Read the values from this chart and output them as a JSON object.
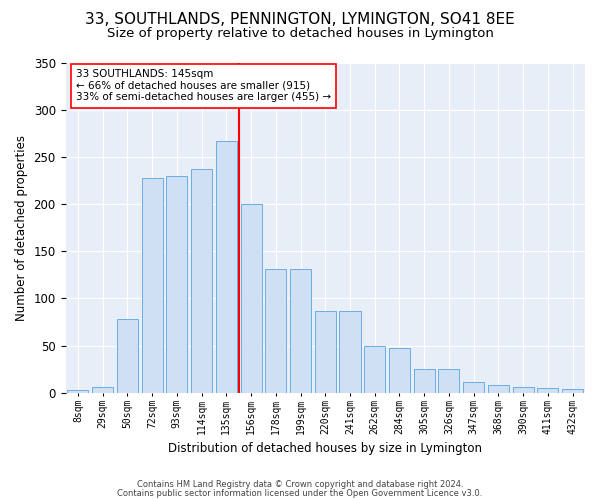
{
  "title1": "33, SOUTHLANDS, PENNINGTON, LYMINGTON, SO41 8EE",
  "title2": "Size of property relative to detached houses in Lymington",
  "xlabel": "Distribution of detached houses by size in Lymington",
  "ylabel": "Number of detached properties",
  "bar_labels": [
    "8sqm",
    "29sqm",
    "50sqm",
    "72sqm",
    "93sqm",
    "114sqm",
    "135sqm",
    "156sqm",
    "178sqm",
    "199sqm",
    "220sqm",
    "241sqm",
    "262sqm",
    "284sqm",
    "305sqm",
    "326sqm",
    "347sqm",
    "368sqm",
    "390sqm",
    "411sqm",
    "432sqm"
  ],
  "bar_values": [
    3,
    6,
    78,
    228,
    230,
    237,
    267,
    200,
    131,
    131,
    87,
    87,
    50,
    47,
    25,
    25,
    11,
    8,
    6,
    5,
    4
  ],
  "bar_color": "#cfe0f5",
  "bar_edge_color": "#6aaee0",
  "vline_color": "red",
  "annotation_text": "33 SOUTHLANDS: 145sqm\n← 66% of detached houses are smaller (915)\n33% of semi-detached houses are larger (455) →",
  "annotation_box_color": "white",
  "annotation_box_edge": "red",
  "footer1": "Contains HM Land Registry data © Crown copyright and database right 2024.",
  "footer2": "Contains public sector information licensed under the Open Government Licence v3.0.",
  "bg_color": "#e8eef8",
  "ylim": [
    0,
    350
  ],
  "title1_fontsize": 11,
  "title2_fontsize": 9.5
}
